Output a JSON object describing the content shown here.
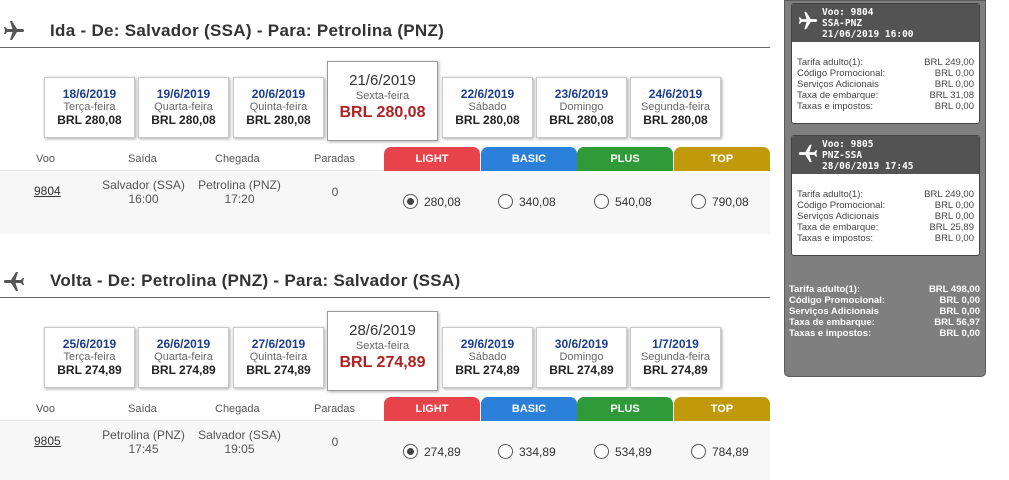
{
  "outbound": {
    "title": "Ida - De: Salvador (SSA) - Para: Petrolina (PNZ)",
    "dates": [
      {
        "date": "18/6/2019",
        "weekday": "Terça-feira",
        "price": "BRL 280,08",
        "selected": false
      },
      {
        "date": "19/6/2019",
        "weekday": "Quarta-feira",
        "price": "BRL 280,08",
        "selected": false
      },
      {
        "date": "20/6/2019",
        "weekday": "Quinta-feira",
        "price": "BRL 280,08",
        "selected": false
      },
      {
        "date": "21/6/2019",
        "weekday": "Sexta-feira",
        "price": "BRL 280,08",
        "selected": true
      },
      {
        "date": "22/6/2019",
        "weekday": "Sábado",
        "price": "BRL 280,08",
        "selected": false
      },
      {
        "date": "23/6/2019",
        "weekday": "Domingo",
        "price": "BRL 280,08",
        "selected": false
      },
      {
        "date": "24/6/2019",
        "weekday": "Segunda-feira",
        "price": "BRL 280,08",
        "selected": false
      }
    ],
    "flight": {
      "number": "9804",
      "departure_city": "Salvador (SSA)",
      "departure_time": "16:00",
      "arrival_city": "Petrolina (PNZ)",
      "arrival_time": "17:20",
      "stops": "0",
      "fares": [
        "280,08",
        "340,08",
        "540,08",
        "790,08"
      ],
      "selected_fare": 0
    }
  },
  "return": {
    "title": "Volta - De: Petrolina (PNZ) - Para: Salvador (SSA)",
    "dates": [
      {
        "date": "25/6/2019",
        "weekday": "Terça-feira",
        "price": "BRL 274,89",
        "selected": false
      },
      {
        "date": "26/6/2019",
        "weekday": "Quarta-feira",
        "price": "BRL 274,89",
        "selected": false
      },
      {
        "date": "27/6/2019",
        "weekday": "Quinta-feira",
        "price": "BRL 274,89",
        "selected": false
      },
      {
        "date": "28/6/2019",
        "weekday": "Sexta-feira",
        "price": "BRL 274,89",
        "selected": true
      },
      {
        "date": "29/6/2019",
        "weekday": "Sábado",
        "price": "BRL 274,89",
        "selected": false
      },
      {
        "date": "30/6/2019",
        "weekday": "Domingo",
        "price": "BRL 274,89",
        "selected": false
      },
      {
        "date": "1/7/2019",
        "weekday": "Segunda-feira",
        "price": "BRL 274,89",
        "selected": false
      }
    ],
    "flight": {
      "number": "9805",
      "departure_city": "Petrolina (PNZ)",
      "departure_time": "17:45",
      "arrival_city": "Salvador (SSA)",
      "arrival_time": "19:05",
      "stops": "0",
      "fares": [
        "274,89",
        "334,89",
        "534,89",
        "784,89"
      ],
      "selected_fare": 0
    }
  },
  "columns": {
    "flight": "Voo",
    "departure": "Saída",
    "arrival": "Chegada",
    "stops": "Paradas"
  },
  "fare_families": [
    {
      "label": "LIGHT",
      "color": "#e8434a"
    },
    {
      "label": "BASIC",
      "color": "#2b80d9"
    },
    {
      "label": "PLUS",
      "color": "#2f9a38"
    },
    {
      "label": "TOP",
      "color": "#c09a0b"
    }
  ],
  "summary": {
    "legs": [
      {
        "flight": "Voo: 9804",
        "route": "SSA-PNZ",
        "datetime": "21/06/2019 16:00",
        "rows": [
          {
            "label": "Tarifa adulto(1):",
            "value": "BRL 249,00"
          },
          {
            "label": "Código Promocional:",
            "value": "BRL 0,00"
          },
          {
            "label": "Serviços Adicionais",
            "value": "BRL 0,00"
          },
          {
            "label": "Taxa de embarque:",
            "value": "BRL 31,08"
          },
          {
            "label": "Taxas e impostos:",
            "value": "BRL 0,00"
          }
        ]
      },
      {
        "flight": "Voo: 9805",
        "route": "PNZ-SSA",
        "datetime": "28/06/2019 17:45",
        "rows": [
          {
            "label": "Tarifa adulto(1):",
            "value": "BRL 249,00"
          },
          {
            "label": "Código Promocional:",
            "value": "BRL 0,00"
          },
          {
            "label": "Serviços Adicionais",
            "value": "BRL 0,00"
          },
          {
            "label": "Taxa de embarque:",
            "value": "BRL 25,89"
          },
          {
            "label": "Taxas e impostos:",
            "value": "BRL 0,00"
          }
        ]
      }
    ],
    "totals": [
      {
        "label": "Tarifa adulto(1):",
        "value": "BRL 498,00"
      },
      {
        "label": "Código Promocional:",
        "value": "BRL 0,00"
      },
      {
        "label": "Serviços Adicionais",
        "value": "BRL 0,00"
      },
      {
        "label": "Taxa de embarque:",
        "value": "BRL 56,97"
      },
      {
        "label": "Taxas e impostos:",
        "value": "BRL 0,00"
      }
    ]
  },
  "icons": {
    "section_icon": "airplane-icon",
    "leg_icon": "airplane-icon"
  }
}
